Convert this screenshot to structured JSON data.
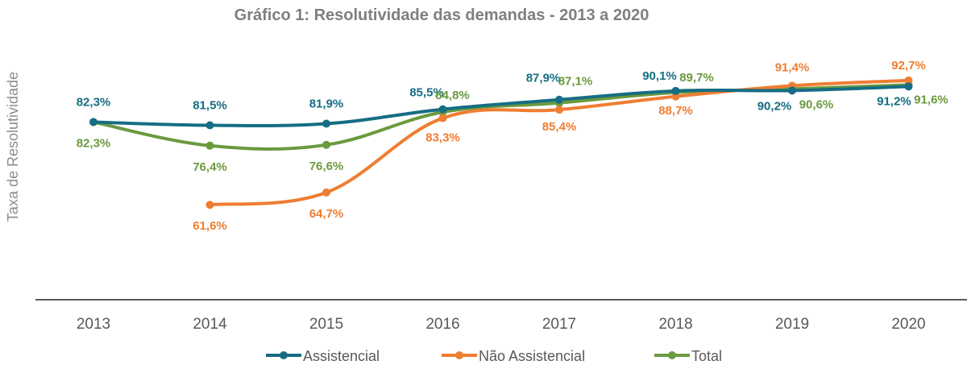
{
  "chart_data": {
    "type": "line",
    "title": "Gráfico 1: Resolutividade das demandas - 2013 a 2020",
    "ylabel": "Taxa de Resolutividade",
    "xlabel": "",
    "categories": [
      "2013",
      "2014",
      "2015",
      "2016",
      "2017",
      "2018",
      "2019",
      "2020"
    ],
    "ylim": [
      55,
      95
    ],
    "grid": false,
    "legend": "bottom",
    "series": [
      {
        "name": "Assistencial",
        "color": "#166d84",
        "values": [
          82.3,
          81.5,
          81.9,
          85.5,
          87.9,
          90.1,
          90.2,
          91.2
        ],
        "labels": [
          "82,3%",
          "81,5%",
          "81,9%",
          "85,5%",
          "87,9%",
          "90,1%",
          "90,2%",
          "91,2%"
        ]
      },
      {
        "name": "Não Assistencial",
        "color": "#ef7d32",
        "values": [
          null,
          61.6,
          64.7,
          83.3,
          85.4,
          88.7,
          91.4,
          92.7
        ],
        "labels": [
          null,
          "61,6%",
          "64,7%",
          "83,3%",
          "85,4%",
          "88,7%",
          "91,4%",
          "92,7%"
        ]
      },
      {
        "name": "Total",
        "color": "#6a9a3e",
        "values": [
          82.3,
          76.4,
          76.6,
          84.8,
          87.1,
          89.7,
          90.6,
          91.6
        ],
        "labels": [
          "82,3%",
          "76,4%",
          "76,6%",
          "84,8%",
          "87,1%",
          "89,7%",
          "90,6%",
          "91,6%"
        ]
      }
    ]
  }
}
